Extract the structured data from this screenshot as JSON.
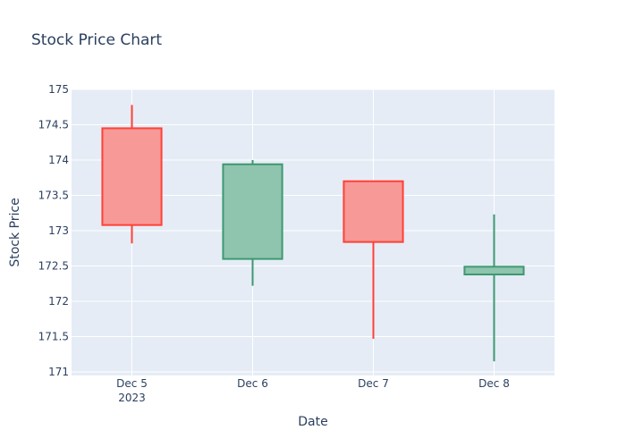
{
  "chart_data": {
    "type": "candlestick",
    "title": "Stock Price Chart",
    "xlabel": "Date",
    "ylabel": "Stock Price",
    "ylim": [
      170.95,
      175
    ],
    "grid": true,
    "legend": "none",
    "colors": {
      "increasing": "#3d9970",
      "increasing_fill": "#8fc4ae",
      "decreasing": "#ff4136",
      "decreasing_fill": "#f69997",
      "plot_bg": "#e5ecf6",
      "grid": "#ffffff",
      "text": "#2a3f5f"
    },
    "x_ticks": [
      {
        "label": "Dec 5",
        "sub": "2023"
      },
      {
        "label": "Dec 6",
        "sub": ""
      },
      {
        "label": "Dec 7",
        "sub": ""
      },
      {
        "label": "Dec 8",
        "sub": ""
      }
    ],
    "y_ticks": [
      {
        "value": 171,
        "label": "171"
      },
      {
        "value": 171.5,
        "label": "171.5"
      },
      {
        "value": 172,
        "label": "172"
      },
      {
        "value": 172.5,
        "label": "172.5"
      },
      {
        "value": 173,
        "label": "173"
      },
      {
        "value": 173.5,
        "label": "173.5"
      },
      {
        "value": 174,
        "label": "174"
      },
      {
        "value": 174.5,
        "label": "174.5"
      },
      {
        "value": 175,
        "label": "175"
      }
    ],
    "candles": [
      {
        "date": "2023-12-05",
        "open": 174.45,
        "high": 174.78,
        "low": 172.82,
        "close": 173.08
      },
      {
        "date": "2023-12-06",
        "open": 172.6,
        "high": 174.0,
        "low": 172.22,
        "close": 173.94
      },
      {
        "date": "2023-12-07",
        "open": 173.7,
        "high": 173.7,
        "low": 171.47,
        "close": 172.84
      },
      {
        "date": "2023-12-08",
        "open": 172.38,
        "high": 173.23,
        "low": 171.15,
        "close": 172.49
      }
    ]
  }
}
